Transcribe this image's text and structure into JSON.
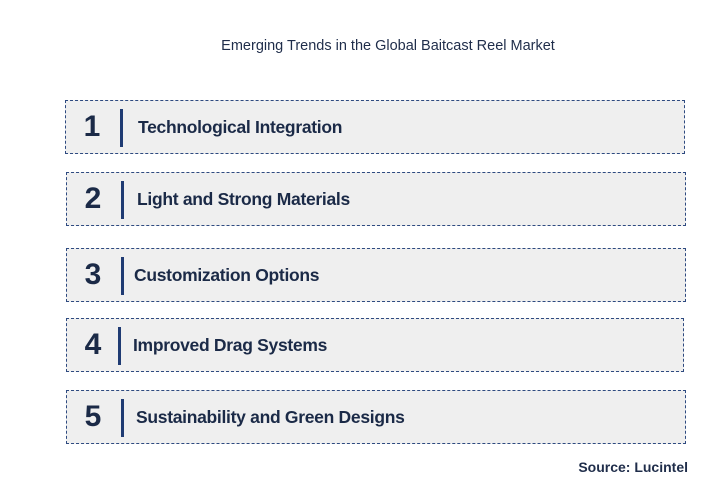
{
  "title": "Emerging Trends in the Global Baitcast Reel Market",
  "items": [
    {
      "number": "1",
      "label": "Technological Integration"
    },
    {
      "number": "2",
      "label": "Light and Strong Materials"
    },
    {
      "number": "3",
      "label": "Customization Options"
    },
    {
      "number": "4",
      "label": "Improved Drag Systems"
    },
    {
      "number": "5",
      "label": "Sustainability and Green Designs"
    }
  ],
  "source": "Source: Lucintel",
  "colors": {
    "border": "#2e4a80",
    "bar": "#1f3b73",
    "box_fill": "#efefef",
    "text": "#1b2a47"
  }
}
